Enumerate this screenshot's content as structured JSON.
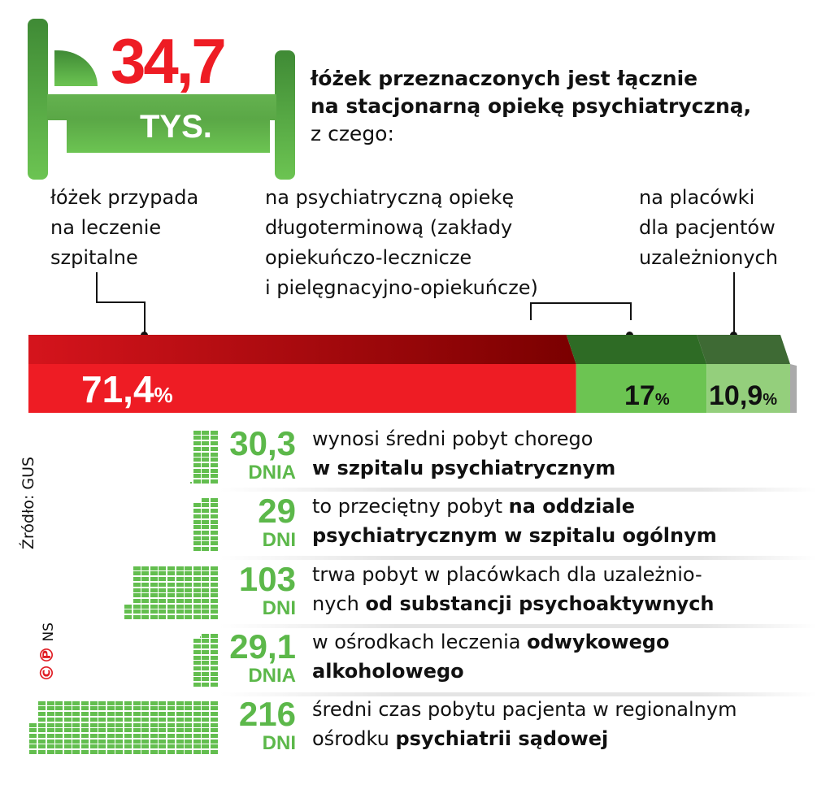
{
  "header": {
    "value": "34,7",
    "unit": "TYS.",
    "text_bold_1": "łóżek przeznaczonych jest łącznie",
    "text_bold_2": "na stacjonarną opiekę psychiatryczną,",
    "text_regular": "z czego:"
  },
  "colors": {
    "red": "#ee1c24",
    "dark_red": "#8b0000",
    "green": "#6cc452",
    "light_green": "#94cf7c",
    "dark_green": "#2e6b25",
    "value_green": "#5cb84a"
  },
  "chart_data": [
    {
      "type": "bar",
      "stacked": true,
      "orientation": "horizontal",
      "unit": "%",
      "series": [
        {
          "label": "łóżek przypada na leczenie szpitalne",
          "value": 71.4,
          "display": "71,4",
          "color": "#ee1c24"
        },
        {
          "label": "na psychiatryczną opiekę długoterminową (zakłady opiekuńczo-lecznicze i pielęgnacyjno-opiekuńcze)",
          "value": 17,
          "display": "17",
          "color": "#6cc452"
        },
        {
          "label": "na placówki dla pacjentów uzależnionych",
          "value": 10.9,
          "display": "10,9",
          "color": "#94cf7c"
        }
      ],
      "label_lines": [
        [
          "łóżek przypada",
          "na leczenie",
          "szpitalne"
        ],
        [
          "na psychiatryczną opiekę",
          "długoterminową (zakłady",
          "opiekuńczo-lecznicze",
          "i pielęgnacyjno-opiekuńcze)"
        ],
        [
          "na placówki",
          "dla pacjentów",
          "uzależnionych"
        ]
      ]
    },
    {
      "type": "pictogram",
      "unit_per_block": "1 dzień",
      "rows": [
        {
          "value": 30.3,
          "display": "30,3",
          "unit": "DNIA",
          "text": "wynosi średni pobyt chorego",
          "bold": "w szpitalu psychiatrycznym",
          "line1_pre": "wynosi średni pobyt chorego",
          "line1_bold": "",
          "line2_pre": "",
          "line2_bold": "w szpitalu psychiatrycznym"
        },
        {
          "value": 29,
          "display": "29",
          "unit": "DNI",
          "line1_pre": "to przeciętny pobyt ",
          "line1_bold": "na oddziale",
          "line2_pre": "",
          "line2_bold": "psychiatrycznym w szpitalu ogólnym"
        },
        {
          "value": 103,
          "display": "103",
          "unit": "DNI",
          "line1_pre": "trwa pobyt w placówkach dla uzależnio-",
          "line1_bold": "",
          "line2_pre": "nych ",
          "line2_bold": "od substancji psychoaktywnych"
        },
        {
          "value": 29.1,
          "display": "29,1",
          "unit": "DNIA",
          "line1_pre": "w ośrodkach leczenia ",
          "line1_bold": "odwykowego",
          "line2_pre": "",
          "line2_bold": "alkoholowego"
        },
        {
          "value": 216,
          "display": "216",
          "unit": "DNI",
          "line1_pre": "średni czas pobytu pacjenta w regionalnym",
          "line1_bold": "",
          "line2_pre": "ośrodku ",
          "line2_bold": "psychiatrii sądowej"
        }
      ]
    }
  ],
  "footer": {
    "source": "Źródło: GUS",
    "copyright": "©℗",
    "author": "NS"
  }
}
